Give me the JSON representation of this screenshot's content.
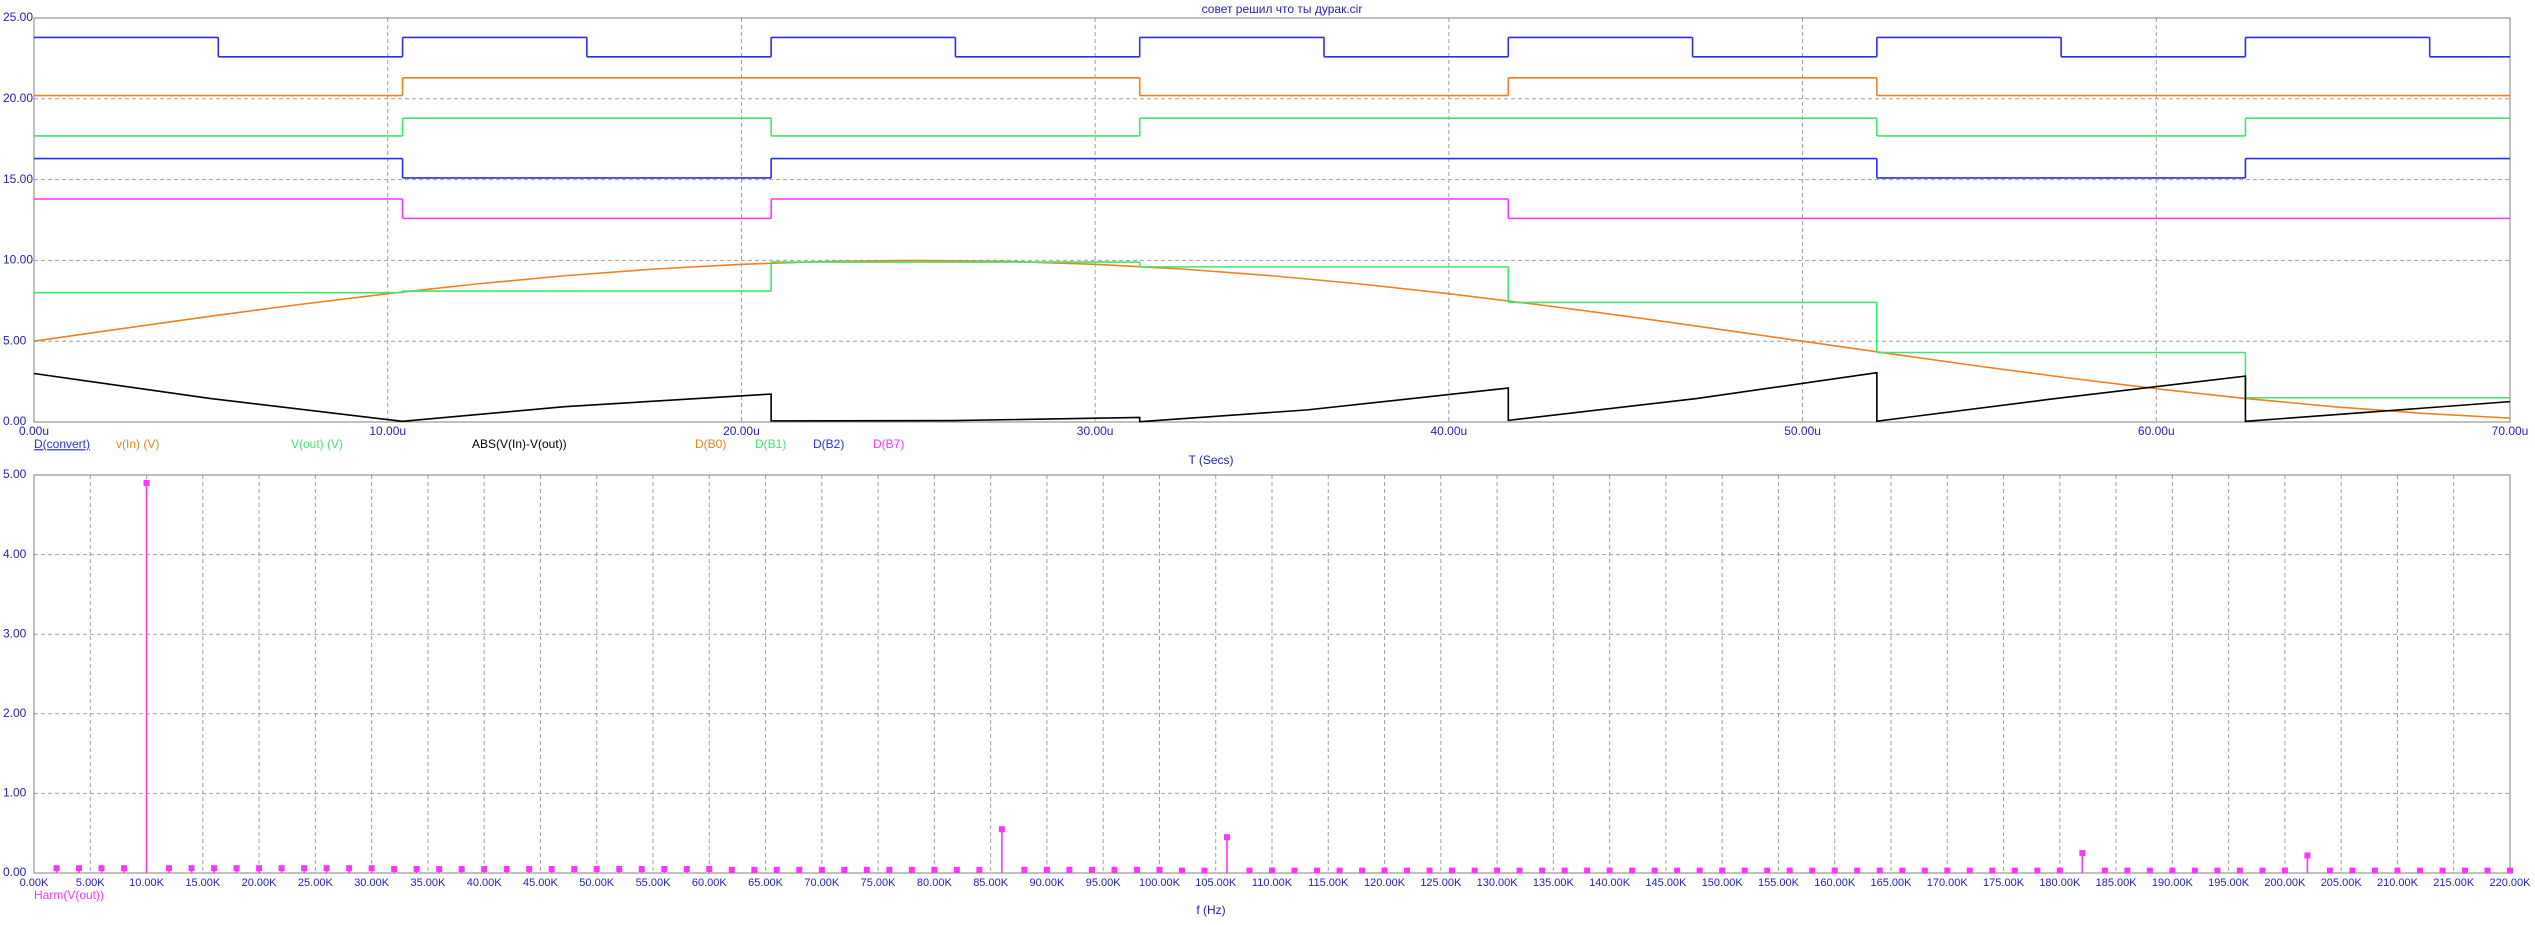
{
  "chart_data": [
    {
      "type": "line",
      "title": "совет решил что ты дурак.cir",
      "x_label": "T (Secs)",
      "xlim": [
        0,
        70
      ],
      "xticks": [
        {
          "value": 0,
          "label": "0.00u"
        },
        {
          "value": 10,
          "label": "10.00u"
        },
        {
          "value": 20,
          "label": "20.00u"
        },
        {
          "value": 30,
          "label": "30.00u"
        },
        {
          "value": 40,
          "label": "40.00u"
        },
        {
          "value": 50,
          "label": "50.00u"
        },
        {
          "value": 60,
          "label": "60.00u"
        },
        {
          "value": 70,
          "label": "70.00u"
        }
      ],
      "ylim": [
        0,
        25
      ],
      "yticks": [
        {
          "value": 0,
          "label": "0.00"
        },
        {
          "value": 5,
          "label": "5.00"
        },
        {
          "value": 10,
          "label": "10.00"
        },
        {
          "value": 15,
          "label": "15.00"
        },
        {
          "value": 20,
          "label": "20.00"
        },
        {
          "value": 25,
          "label": "25.00"
        }
      ],
      "grid": true,
      "series": [
        {
          "name": "D(convert)",
          "color": "#2b2bff",
          "step": true,
          "x": [
            0,
            5.21,
            10.42,
            15.63,
            20.84,
            26.05,
            31.26,
            36.47,
            41.68,
            46.89,
            52.1,
            57.31,
            62.52,
            67.73
          ],
          "values": [
            23.8,
            22.6,
            23.8,
            22.6,
            23.8,
            22.6,
            23.8,
            22.6,
            23.8,
            22.6,
            23.8,
            22.6,
            23.8,
            22.6
          ]
        },
        {
          "name": "v(In) (V)",
          "color": "#f0801e",
          "x": [
            0,
            2.5,
            5,
            7.5,
            10,
            12.5,
            15,
            17.5,
            20,
            22.5,
            25,
            27.5,
            30,
            32.5,
            35,
            37.5,
            40,
            42.5,
            45,
            47.5,
            50,
            52.5,
            55,
            57.5,
            60,
            62.5,
            65,
            67.5,
            70
          ],
          "values": [
            5,
            5.78,
            6.55,
            7.27,
            7.94,
            8.54,
            9.05,
            9.46,
            9.76,
            9.94,
            10,
            9.94,
            9.76,
            9.46,
            9.05,
            8.54,
            7.94,
            7.27,
            6.55,
            5.78,
            5,
            4.22,
            3.45,
            2.73,
            2.06,
            1.46,
            0.95,
            0.54,
            0.24
          ]
        },
        {
          "name": "V(out) (V)",
          "color": "#3ee66e",
          "step": true,
          "x": [
            0,
            10.42,
            20.84,
            31.26,
            41.68,
            52.1,
            62.52
          ],
          "values": [
            8.0,
            8.1,
            9.9,
            9.6,
            7.4,
            4.3,
            1.5
          ]
        },
        {
          "name": "ABS(V(In)-V(out))",
          "color": "#000000",
          "x": [
            0,
            5,
            10.42,
            15,
            20.84,
            20.84,
            26,
            31.26,
            31.26,
            36,
            41.68,
            41.68,
            47,
            52.1,
            52.1,
            57,
            62.52,
            62.52,
            70
          ],
          "values": [
            3,
            1.45,
            0.04,
            0.95,
            1.73,
            0.07,
            0.09,
            0.28,
            0.02,
            0.75,
            2.1,
            0.1,
            1.45,
            3.05,
            0.05,
            1.41,
            2.84,
            0.04,
            1.26
          ]
        },
        {
          "name": "D(B0)",
          "color": "#f0801e",
          "step": true,
          "x": [
            0,
            10.42,
            31.26,
            41.68,
            52.1
          ],
          "values": [
            20.2,
            21.3,
            20.2,
            21.3,
            20.2
          ]
        },
        {
          "name": "D(B1)",
          "color": "#3ee66e",
          "step": true,
          "x": [
            0,
            10.42,
            20.84,
            31.26,
            52.1,
            62.52
          ],
          "values": [
            17.7,
            18.8,
            17.7,
            18.8,
            17.7,
            18.8
          ]
        },
        {
          "name": "D(B2)",
          "color": "#2b2bff",
          "step": true,
          "x": [
            0,
            10.42,
            20.84,
            52.1,
            62.52
          ],
          "values": [
            16.3,
            15.1,
            16.3,
            15.1,
            16.3
          ]
        },
        {
          "name": "D(B7)",
          "color": "#ff33ff",
          "step": true,
          "x": [
            0,
            10.42,
            20.84,
            41.68
          ],
          "values": [
            13.8,
            12.6,
            13.8,
            12.6
          ]
        }
      ]
    },
    {
      "type": "stem",
      "x_label": "f (Hz)",
      "xlim": [
        0,
        220
      ],
      "xticks": [
        {
          "value": 0,
          "label": "0.00K"
        },
        {
          "value": 5,
          "label": "5.00K"
        },
        {
          "value": 10,
          "label": "10.00K"
        },
        {
          "value": 15,
          "label": "15.00K"
        },
        {
          "value": 20,
          "label": "20.00K"
        },
        {
          "value": 25,
          "label": "25.00K"
        },
        {
          "value": 30,
          "label": "30.00K"
        },
        {
          "value": 35,
          "label": "35.00K"
        },
        {
          "value": 40,
          "label": "40.00K"
        },
        {
          "value": 45,
          "label": "45.00K"
        },
        {
          "value": 50,
          "label": "50.00K"
        },
        {
          "value": 55,
          "label": "55.00K"
        },
        {
          "value": 60,
          "label": "60.00K"
        },
        {
          "value": 65,
          "label": "65.00K"
        },
        {
          "value": 70,
          "label": "70.00K"
        },
        {
          "value": 75,
          "label": "75.00K"
        },
        {
          "value": 80,
          "label": "80.00K"
        },
        {
          "value": 85,
          "label": "85.00K"
        },
        {
          "value": 90,
          "label": "90.00K"
        },
        {
          "value": 95,
          "label": "95.00K"
        },
        {
          "value": 100,
          "label": "100.00K"
        },
        {
          "value": 105,
          "label": "105.00K"
        },
        {
          "value": 110,
          "label": "110.00K"
        },
        {
          "value": 115,
          "label": "115.00K"
        },
        {
          "value": 120,
          "label": "120.00K"
        },
        {
          "value": 125,
          "label": "125.00K"
        },
        {
          "value": 130,
          "label": "130.00K"
        },
        {
          "value": 135,
          "label": "135.00K"
        },
        {
          "value": 140,
          "label": "140.00K"
        },
        {
          "value": 145,
          "label": "145.00K"
        },
        {
          "value": 150,
          "label": "150.00K"
        },
        {
          "value": 155,
          "label": "155.00K"
        },
        {
          "value": 160,
          "label": "160.00K"
        },
        {
          "value": 165,
          "label": "165.00K"
        },
        {
          "value": 170,
          "label": "170.00K"
        },
        {
          "value": 175,
          "label": "175.00K"
        },
        {
          "value": 180,
          "label": "180.00K"
        },
        {
          "value": 185,
          "label": "185.00K"
        },
        {
          "value": 190,
          "label": "190.00K"
        },
        {
          "value": 195,
          "label": "195.00K"
        },
        {
          "value": 200,
          "label": "200.00K"
        },
        {
          "value": 205,
          "label": "205.00K"
        },
        {
          "value": 210,
          "label": "210.00K"
        },
        {
          "value": 215,
          "label": "215.00K"
        },
        {
          "value": 220,
          "label": "220.00K"
        }
      ],
      "ylim": [
        0,
        5
      ],
      "yticks": [
        {
          "value": 0,
          "label": "0.00"
        },
        {
          "value": 1,
          "label": "1.00"
        },
        {
          "value": 2,
          "label": "2.00"
        },
        {
          "value": 3,
          "label": "3.00"
        },
        {
          "value": 4,
          "label": "4.00"
        },
        {
          "value": 5,
          "label": "5.00"
        }
      ],
      "grid": true,
      "series": [
        {
          "name": "Harm(V(out))",
          "color": "#ff33ff",
          "x": [
            2,
            4,
            6,
            8,
            10,
            12,
            14,
            16,
            18,
            20,
            22,
            24,
            26,
            28,
            30,
            32,
            34,
            36,
            38,
            40,
            42,
            44,
            46,
            48,
            50,
            52,
            54,
            56,
            58,
            60,
            62,
            64,
            66,
            68,
            70,
            72,
            74,
            76,
            78,
            80,
            82,
            84,
            86,
            88,
            90,
            92,
            94,
            96,
            98,
            100,
            102,
            104,
            106,
            108,
            110,
            112,
            114,
            116,
            118,
            120,
            122,
            124,
            126,
            128,
            130,
            132,
            134,
            136,
            138,
            140,
            142,
            144,
            146,
            148,
            150,
            152,
            154,
            156,
            158,
            160,
            162,
            164,
            166,
            168,
            170,
            172,
            174,
            176,
            178,
            180,
            182,
            184,
            186,
            188,
            190,
            192,
            194,
            196,
            198,
            200,
            202,
            204,
            206,
            208,
            210,
            212,
            214,
            216,
            218,
            220
          ],
          "values": [
            0.06,
            0.06,
            0.06,
            0.06,
            4.9,
            0.06,
            0.06,
            0.06,
            0.06,
            0.06,
            0.06,
            0.06,
            0.06,
            0.06,
            0.06,
            0.05,
            0.05,
            0.05,
            0.05,
            0.05,
            0.05,
            0.05,
            0.05,
            0.05,
            0.05,
            0.05,
            0.05,
            0.05,
            0.05,
            0.05,
            0.04,
            0.04,
            0.04,
            0.04,
            0.04,
            0.04,
            0.04,
            0.04,
            0.04,
            0.04,
            0.04,
            0.04,
            0.55,
            0.04,
            0.04,
            0.04,
            0.04,
            0.04,
            0.04,
            0.04,
            0.03,
            0.03,
            0.45,
            0.03,
            0.03,
            0.03,
            0.03,
            0.03,
            0.03,
            0.03,
            0.03,
            0.03,
            0.03,
            0.03,
            0.03,
            0.03,
            0.03,
            0.03,
            0.03,
            0.03,
            0.03,
            0.03,
            0.03,
            0.03,
            0.03,
            0.03,
            0.03,
            0.03,
            0.03,
            0.03,
            0.03,
            0.03,
            0.03,
            0.03,
            0.03,
            0.03,
            0.03,
            0.03,
            0.03,
            0.03,
            0.25,
            0.03,
            0.03,
            0.03,
            0.03,
            0.03,
            0.03,
            0.03,
            0.03,
            0.03,
            0.22,
            0.03,
            0.03,
            0.03,
            0.03,
            0.03,
            0.03,
            0.03,
            0.03,
            0.03
          ]
        }
      ]
    }
  ]
}
